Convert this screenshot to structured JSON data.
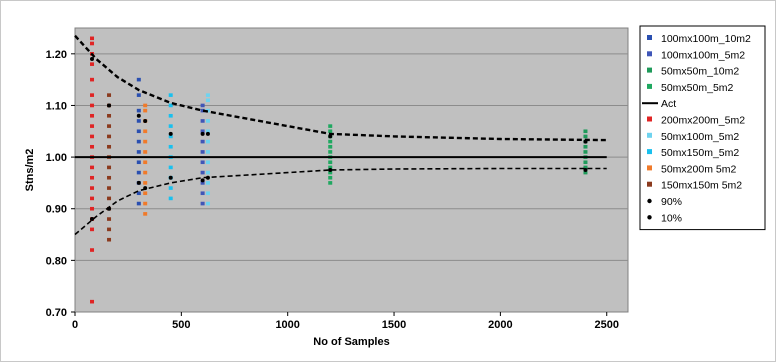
{
  "chart_data": {
    "type": "scatter",
    "title": "",
    "xlabel": "No of Samples",
    "ylabel": "Stns/m2",
    "xlim": [
      0,
      2600
    ],
    "ylim": [
      0.7,
      1.25
    ],
    "x_ticks": [
      "0",
      "500",
      "1000",
      "1500",
      "2000",
      "2500"
    ],
    "y_ticks": [
      "0.70",
      "0.80",
      "0.90",
      "1.00",
      "1.10",
      "1.20"
    ],
    "grid": true,
    "legend_position": "right",
    "series": [
      {
        "name": "100mx100m_10m2",
        "kind": "points",
        "color": "#2a4fb0",
        "x": 300,
        "points": [
          0.91,
          0.93,
          0.95,
          0.97,
          0.99,
          1.01,
          1.03,
          1.05,
          1.07,
          1.09,
          1.12,
          1.15
        ]
      },
      {
        "name": "100mx100m_5m2",
        "kind": "points",
        "color": "#3f56b8",
        "x": 600,
        "points": [
          0.91,
          0.93,
          0.95,
          0.97,
          0.99,
          1.01,
          1.03,
          1.05,
          1.07,
          1.09,
          1.1
        ]
      },
      {
        "name": "50mx50m_10m2",
        "kind": "points",
        "color": "#1f9a5a",
        "x": 2400,
        "points": [
          0.97,
          0.98,
          0.99,
          1.0,
          1.01,
          1.02,
          1.03,
          1.04,
          1.05
        ]
      },
      {
        "name": "50mx50m_5m2",
        "kind": "points",
        "color": "#1fa860",
        "x": 1200,
        "points": [
          0.95,
          0.96,
          0.97,
          0.98,
          0.99,
          1.0,
          1.01,
          1.02,
          1.03,
          1.04,
          1.05,
          1.06
        ]
      },
      {
        "name": "Act",
        "kind": "line",
        "color": "#000000",
        "x": [
          0,
          2500
        ],
        "y": [
          1.0,
          1.0
        ]
      },
      {
        "name": "200mx200m_5m2",
        "kind": "points",
        "color": "#e02424",
        "x": 80,
        "points": [
          0.72,
          0.82,
          0.86,
          0.88,
          0.9,
          0.92,
          0.94,
          0.96,
          0.98,
          1.0,
          1.02,
          1.04,
          1.06,
          1.08,
          1.1,
          1.12,
          1.15,
          1.18,
          1.2,
          1.22,
          1.23
        ]
      },
      {
        "name": "50mx100m_5m2",
        "kind": "points",
        "color": "#6fd3ef",
        "x": 625,
        "points": [
          0.91,
          0.93,
          0.95,
          0.97,
          0.99,
          1.01,
          1.03,
          1.05,
          1.07,
          1.09,
          1.11,
          1.12
        ]
      },
      {
        "name": "50mx150m_5m2",
        "kind": "points",
        "color": "#19c0ee",
        "x": 450,
        "points": [
          0.92,
          0.94,
          0.96,
          0.98,
          1.0,
          1.02,
          1.04,
          1.06,
          1.08,
          1.1,
          1.12
        ]
      },
      {
        "name": "50mx200m 5m2",
        "kind": "points",
        "color": "#f07a2a",
        "x": 330,
        "points": [
          0.89,
          0.91,
          0.93,
          0.95,
          0.97,
          0.99,
          1.01,
          1.03,
          1.05,
          1.07,
          1.09,
          1.1
        ]
      },
      {
        "name": "150mx150m 5m2",
        "kind": "points",
        "color": "#8b3a1e",
        "x": 160,
        "points": [
          0.84,
          0.86,
          0.88,
          0.9,
          0.92,
          0.94,
          0.96,
          0.98,
          1.0,
          1.02,
          1.04,
          1.06,
          1.08,
          1.1,
          1.12
        ]
      },
      {
        "name": "90%",
        "kind": "dashed-curve",
        "color": "#000000",
        "x": [
          0,
          100,
          200,
          300,
          450,
          600,
          1000,
          1200,
          1500,
          2000,
          2500
        ],
        "y": [
          1.235,
          1.19,
          1.155,
          1.13,
          1.105,
          1.09,
          1.06,
          1.045,
          1.04,
          1.035,
          1.033
        ]
      },
      {
        "name": "10%",
        "kind": "dashed-curve",
        "color": "#000000",
        "x": [
          0,
          100,
          200,
          300,
          450,
          600,
          1000,
          1200,
          1500,
          2000,
          2500
        ],
        "y": [
          0.85,
          0.885,
          0.915,
          0.935,
          0.95,
          0.96,
          0.97,
          0.975,
          0.977,
          0.978,
          0.978
        ]
      }
    ],
    "percentile_markers": {
      "x": [
        80,
        160,
        300,
        330,
        450,
        600,
        625,
        1200,
        2400
      ],
      "p90": [
        1.19,
        1.1,
        1.08,
        1.07,
        1.045,
        1.045,
        1.045,
        1.04,
        1.03
      ],
      "p10": [
        0.88,
        0.9,
        0.95,
        0.94,
        0.96,
        0.955,
        0.96,
        0.975,
        0.975
      ]
    }
  }
}
